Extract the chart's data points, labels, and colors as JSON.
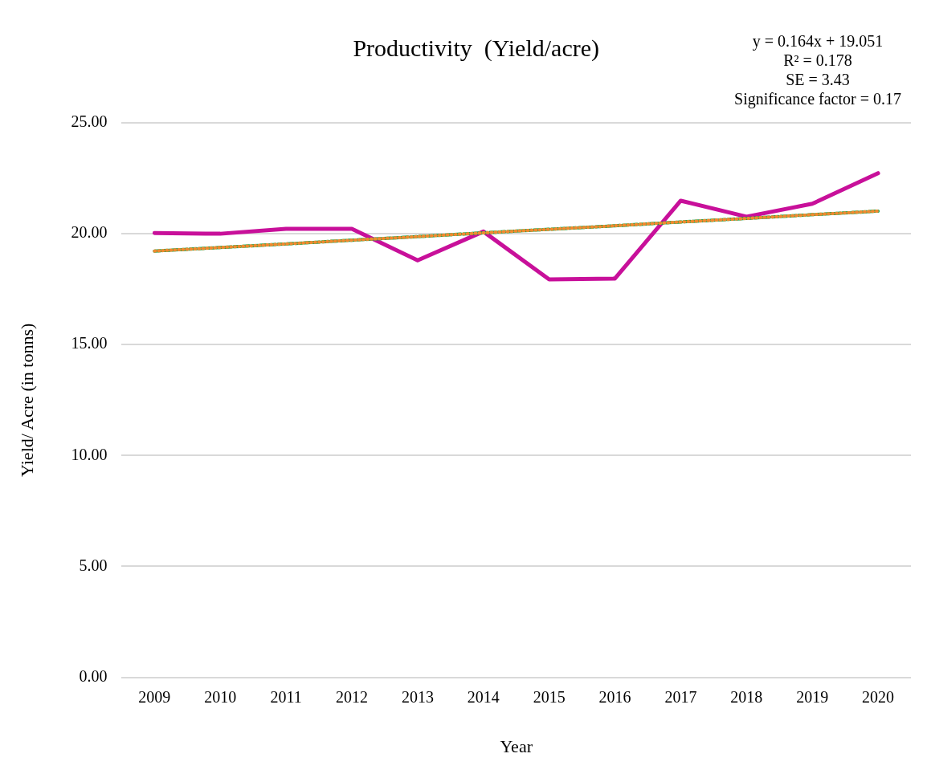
{
  "chart_data": {
    "type": "line",
    "title": "Productivity  (Yield/acre)",
    "xlabel": "Year",
    "ylabel": "Yield/ Acre (in tonns)",
    "categories": [
      "2009",
      "2010",
      "2011",
      "2012",
      "2013",
      "2014",
      "2015",
      "2016",
      "2017",
      "2018",
      "2019",
      "2020"
    ],
    "series": [
      {
        "color": "#c8109a",
        "line_style": "solid",
        "values": [
          20.03,
          20.0,
          20.22,
          20.22,
          18.8,
          20.1,
          17.94,
          17.98,
          21.49,
          20.77,
          21.35,
          22.73
        ]
      },
      {
        "color": "#00a650",
        "line_style": "dashed",
        "values": [
          19.22,
          19.38,
          19.54,
          19.71,
          19.87,
          20.04,
          20.2,
          20.36,
          20.53,
          20.69,
          20.86,
          21.02
        ]
      },
      {
        "color": "#f08a30",
        "line_style": "dotted",
        "values": [
          19.22,
          19.38,
          19.54,
          19.71,
          19.87,
          20.04,
          20.2,
          20.36,
          20.53,
          20.69,
          20.86,
          21.02
        ]
      }
    ],
    "ylim": [
      0,
      25
    ],
    "yticks": [
      {
        "value": 0,
        "label": "0.00"
      },
      {
        "value": 5,
        "label": "5.00"
      },
      {
        "value": 10,
        "label": "10.00"
      },
      {
        "value": 15,
        "label": "15.00"
      },
      {
        "value": 20,
        "label": "20.00"
      },
      {
        "value": 25,
        "label": "25.00"
      }
    ],
    "grid": "y",
    "legend": false,
    "marker": "none",
    "annotations": [
      "y = 0.164x + 19.051",
      "R² = 0.178",
      "SE = 3.43",
      "Significance factor = 0.17"
    ]
  }
}
